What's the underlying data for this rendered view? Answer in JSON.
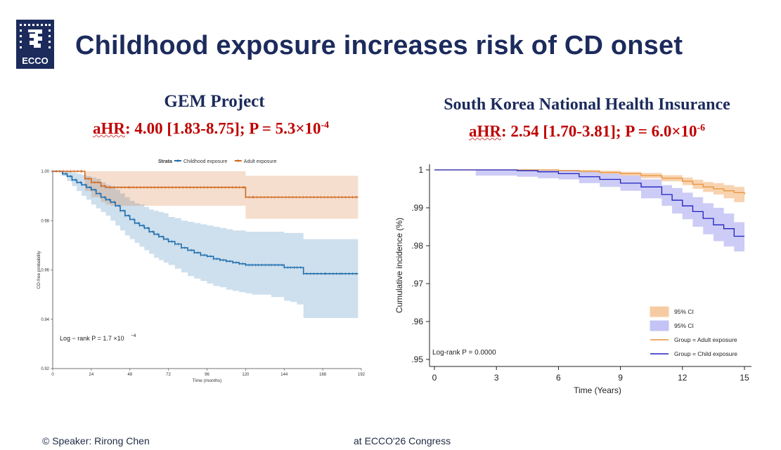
{
  "title": "Childhood exposure increases risk of CD onset",
  "logo": {
    "text": "ECCO",
    "icon": "ecco-logo-icon"
  },
  "left_panel": {
    "heading": "GEM Project",
    "stat_prefix": "aHR",
    "stat_main": ": 4.00 [1.83-8.75]; P = 5.3×10",
    "stat_exp": "-4"
  },
  "right_panel": {
    "heading": "South Korea National Health Insurance",
    "stat_prefix": "aHR",
    "stat_main": ": 2.54 [1.70-3.81]; P = 6.0×10",
    "stat_exp": "-6"
  },
  "footer": {
    "left": "© Speaker:  Rirong Chen",
    "right": "at ECCO'26 Congress"
  },
  "colors": {
    "title": "#1c2b5c",
    "stat": "#c00000",
    "child_left": "#1f6fae",
    "adult_left": "#d2691e",
    "child_right": "#2020c0",
    "adult_right": "#e8943a"
  },
  "chart_data": [
    {
      "type": "line",
      "legend_title": "Strata",
      "legend_position": "top",
      "xlabel": "Time (months)",
      "ylabel": "CD-free probability",
      "xlim": [
        0,
        192
      ],
      "ylim": [
        0.92,
        1.0
      ],
      "xticks": [
        0,
        24,
        48,
        72,
        96,
        120,
        144,
        168,
        192
      ],
      "yticks": [
        0.92,
        0.94,
        0.96,
        0.98,
        1.0
      ],
      "ytick_labels": [
        "0.92",
        "0.94",
        "0.96",
        "0.98",
        "1.00"
      ],
      "annotation_text": "Log − rank P = 1.7 ×10",
      "annotation_exp": "−4",
      "series": [
        {
          "name": "Childhood exposure",
          "color": "#1f6fae",
          "x": [
            0,
            6,
            9,
            12,
            15,
            18,
            21,
            24,
            27,
            30,
            33,
            36,
            39,
            42,
            45,
            48,
            51,
            54,
            57,
            60,
            63,
            66,
            69,
            72,
            76,
            80,
            84,
            88,
            92,
            96,
            100,
            104,
            108,
            112,
            116,
            120,
            124,
            128,
            136,
            144,
            148,
            152,
            156,
            170,
            180,
            190
          ],
          "y": [
            1.0,
            0.999,
            0.998,
            0.9965,
            0.9955,
            0.9945,
            0.9935,
            0.9925,
            0.991,
            0.9895,
            0.9885,
            0.9875,
            0.986,
            0.984,
            0.982,
            0.9805,
            0.979,
            0.978,
            0.977,
            0.9755,
            0.9745,
            0.9735,
            0.9725,
            0.9715,
            0.9705,
            0.969,
            0.968,
            0.967,
            0.966,
            0.9655,
            0.9645,
            0.964,
            0.9635,
            0.963,
            0.9625,
            0.962,
            0.962,
            0.962,
            0.962,
            0.961,
            0.961,
            0.961,
            0.9585,
            0.9585,
            0.9585,
            0.9585
          ],
          "ci_low": [
            1.0,
            0.998,
            0.996,
            0.994,
            0.992,
            0.99,
            0.9885,
            0.9865,
            0.985,
            0.9835,
            0.982,
            0.98,
            0.978,
            0.976,
            0.974,
            0.9725,
            0.971,
            0.9695,
            0.968,
            0.9665,
            0.965,
            0.964,
            0.963,
            0.962,
            0.9605,
            0.959,
            0.9575,
            0.9565,
            0.9555,
            0.9545,
            0.9535,
            0.953,
            0.952,
            0.9515,
            0.951,
            0.9505,
            0.95,
            0.95,
            0.949,
            0.9475,
            0.947,
            0.946,
            0.9405,
            0.9405,
            0.9405,
            0.9405
          ],
          "ci_high": [
            1.0,
            1.0,
            1.0,
            0.9995,
            0.999,
            0.9985,
            0.998,
            0.9975,
            0.997,
            0.9955,
            0.9945,
            0.994,
            0.9925,
            0.991,
            0.9895,
            0.988,
            0.987,
            0.9865,
            0.9855,
            0.9845,
            0.984,
            0.9835,
            0.983,
            0.9815,
            0.981,
            0.98,
            0.9795,
            0.979,
            0.9785,
            0.978,
            0.9775,
            0.977,
            0.9765,
            0.976,
            0.976,
            0.9755,
            0.9755,
            0.9755,
            0.9755,
            0.975,
            0.975,
            0.975,
            0.9725,
            0.9725,
            0.9725,
            0.9725
          ]
        },
        {
          "name": "Adult exposure",
          "color": "#d2691e",
          "x": [
            0,
            18,
            20,
            24,
            30,
            33,
            36,
            48,
            119,
            120,
            125,
            190
          ],
          "y": [
            1.0,
            1.0,
            0.997,
            0.9955,
            0.994,
            0.9935,
            0.9935,
            0.9935,
            0.9935,
            0.9895,
            0.9895,
            0.9895
          ],
          "ci_low": [
            1.0,
            1.0,
            0.992,
            0.9895,
            0.9875,
            0.9865,
            0.986,
            0.986,
            0.986,
            0.9808,
            0.9808,
            0.9808
          ],
          "ci_high": [
            1.0,
            1.0,
            1.0,
            1.0,
            1.0,
            1.0,
            1.0,
            1.0,
            1.0,
            0.9982,
            0.9982,
            0.9982
          ]
        }
      ]
    },
    {
      "type": "line",
      "legend_position": "bottom-right",
      "xlabel": "Time (Years)",
      "ylabel": "Cumulative incidence (%)",
      "xlim": [
        0,
        15
      ],
      "ylim": [
        0.95,
        1.0
      ],
      "xticks": [
        0,
        3,
        6,
        9,
        12,
        15
      ],
      "yticks": [
        0.95,
        0.96,
        0.97,
        0.98,
        0.99,
        1.0
      ],
      "ytick_labels": [
        ".95",
        ".96",
        ".97",
        ".98",
        ".99",
        "1"
      ],
      "annotation_text": "Log-rank P = 0.0000",
      "legend": [
        {
          "label": "95% CI",
          "kind": "band",
          "color": "#f7cba2"
        },
        {
          "label": "95% CI",
          "kind": "band",
          "color": "#c3c3f5"
        },
        {
          "label": "Group = Adult exposure",
          "kind": "line",
          "color": "#e8943a"
        },
        {
          "label": "Group = Child exposure",
          "kind": "line",
          "color": "#2020c0"
        }
      ],
      "series": [
        {
          "name": "Group = Adult exposure",
          "color": "#e8943a",
          "x": [
            0,
            3,
            5,
            6,
            7,
            8,
            9,
            10,
            11,
            12,
            12.5,
            13,
            13.5,
            14,
            14.5,
            15
          ],
          "y": [
            1.0,
            1.0,
            1.0,
            0.9998,
            0.9996,
            0.9993,
            0.999,
            0.9985,
            0.9978,
            0.997,
            0.9962,
            0.9955,
            0.995,
            0.9945,
            0.994,
            0.9935
          ],
          "ci_low": [
            1.0,
            1.0,
            0.9998,
            0.9995,
            0.9992,
            0.9988,
            0.9984,
            0.9978,
            0.997,
            0.996,
            0.995,
            0.9942,
            0.9935,
            0.9925,
            0.9915,
            0.9905
          ],
          "ci_high": [
            1.0,
            1.0,
            1.0,
            1.0,
            1.0,
            0.9998,
            0.9995,
            0.9992,
            0.9986,
            0.998,
            0.9974,
            0.9968,
            0.9965,
            0.996,
            0.9955,
            0.995
          ]
        },
        {
          "name": "Group = Child exposure",
          "color": "#2020c0",
          "x": [
            0,
            2,
            3,
            4,
            5,
            6,
            7,
            8,
            9,
            10,
            11,
            11.5,
            12,
            12.5,
            13,
            13.5,
            14,
            14.5,
            15
          ],
          "y": [
            1.0,
            1.0,
            1.0,
            0.9998,
            0.9995,
            0.999,
            0.9982,
            0.9975,
            0.9965,
            0.9955,
            0.9935,
            0.992,
            0.9905,
            0.989,
            0.9872,
            0.9855,
            0.9845,
            0.9825,
            0.9825
          ],
          "ci_low": [
            1.0,
            0.9985,
            0.9985,
            0.9982,
            0.9978,
            0.9975,
            0.9965,
            0.9955,
            0.9945,
            0.9925,
            0.9905,
            0.9885,
            0.987,
            0.985,
            0.983,
            0.9812,
            0.9798,
            0.9785,
            0.9785
          ],
          "ci_high": [
            1.0,
            1.0,
            1.0,
            1.0,
            1.0,
            1.0,
            0.9995,
            0.999,
            0.9985,
            0.9975,
            0.996,
            0.9952,
            0.994,
            0.9928,
            0.9912,
            0.99,
            0.9885,
            0.9862,
            0.9862
          ]
        }
      ]
    }
  ]
}
